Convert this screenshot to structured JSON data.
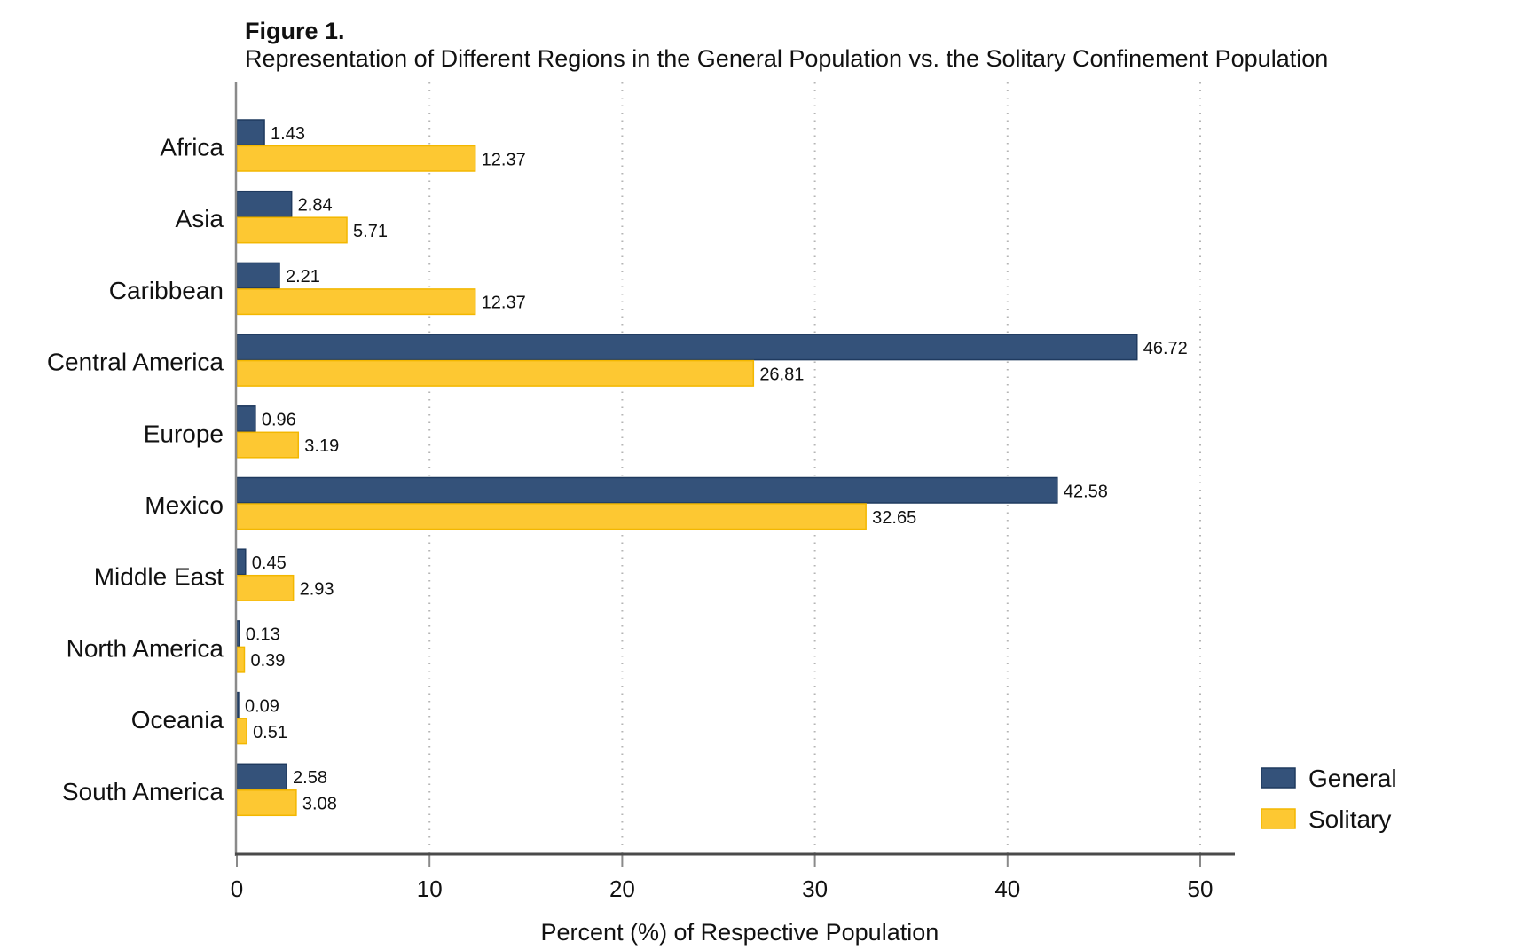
{
  "figure": {
    "label": "Figure 1.",
    "title": "Representation of Different Regions in the General Population vs. the Solitary Confinement Population"
  },
  "colors": {
    "General": "#34527a",
    "General_border": "#1f3a5f",
    "Solitary": "#fdc832",
    "Solitary_border": "#f3b700"
  },
  "chart_data": {
    "type": "bar",
    "orientation": "horizontal",
    "title": "Representation of Different Regions in the General Population vs. the Solitary Confinement Population",
    "xlabel": "Percent (%) of Respective Population",
    "ylabel": "",
    "categories": [
      "Africa",
      "Asia",
      "Caribbean",
      "Central America",
      "Europe",
      "Mexico",
      "Middle East",
      "North America",
      "Oceania",
      "South America"
    ],
    "series": [
      {
        "name": "General",
        "values": [
          1.43,
          2.84,
          2.21,
          46.72,
          0.96,
          42.58,
          0.45,
          0.13,
          0.09,
          2.58
        ]
      },
      {
        "name": "Solitary",
        "values": [
          12.37,
          5.71,
          12.37,
          26.81,
          3.19,
          32.65,
          2.93,
          0.39,
          0.51,
          3.08
        ]
      }
    ],
    "xlim": [
      0,
      51.8
    ],
    "xticks": [
      0,
      10,
      20,
      30,
      40,
      50
    ],
    "grid": "vertical dotted",
    "legend": {
      "placement": "bottom-right",
      "entries": [
        "General",
        "Solitary"
      ]
    },
    "data_labels": true
  }
}
